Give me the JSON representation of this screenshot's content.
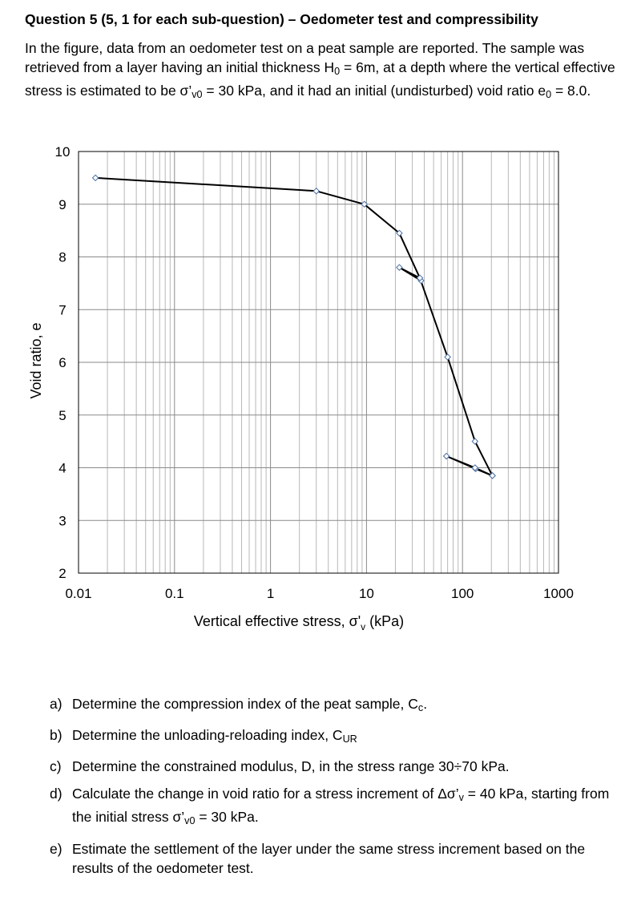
{
  "title": "Question 5 (5, 1 for each sub-question) – Oedometer test and compressibility",
  "intro": {
    "p1": "In the figure, data from an oedometer test on a peat sample are reported. The sample was retrieved from a layer having an initial thickness H",
    "H0_sub": "0",
    "p2": " = 6m, at a depth where the vertical effective stress is estimated to be σ’",
    "sv0_sub": "v0",
    "p3": " = 30 kPa, and it had an initial (undisturbed) void ratio e",
    "e0_sub": "0",
    "p4": " = 8.0."
  },
  "chart_data": {
    "type": "line",
    "xscale": "log",
    "xlim": [
      0.01,
      1000
    ],
    "ylim": [
      2,
      10
    ],
    "x_tick_labels": [
      "0.01",
      "0.1",
      "1",
      "10",
      "100",
      "1000"
    ],
    "y_tick_labels": [
      "2",
      "3",
      "4",
      "5",
      "6",
      "7",
      "8",
      "9",
      "10"
    ],
    "xlabel_main": "Vertical effective stress, σ'",
    "xlabel_sub": "v",
    "xlabel_tail": " (kPa)",
    "ylabel": "Void ratio, e",
    "grid": true,
    "series": [
      {
        "name": "oedometer test",
        "x": [
          0.015,
          3,
          9.5,
          22,
          37,
          22,
          36,
          70,
          135,
          205,
          137,
          68,
          135,
          205
        ],
        "y": [
          9.5,
          9.25,
          9.0,
          8.45,
          7.55,
          7.8,
          7.6,
          6.1,
          4.5,
          3.85,
          3.98,
          4.22,
          4.0,
          3.85
        ]
      }
    ]
  },
  "questions": [
    {
      "letter": "a)",
      "t1": "Determine the compression index of the peat sample, C",
      "s1": "c",
      "t2": "."
    },
    {
      "letter": "b)",
      "t1": "Determine the unloading-reloading index, C",
      "s1": "UR",
      "t2": ""
    },
    {
      "letter": "c)",
      "t1": "Determine the constrained modulus, D, in the stress range 30÷70 kPa.",
      "s1": "",
      "t2": ""
    },
    {
      "letter": "d)",
      "t1": "Calculate the change in void ratio for a stress increment of Δσ’",
      "s1": "v",
      "t2": " = 40 kPa, starting from the initial stress σ’",
      "s2": "v0",
      "t3": " = 30 kPa."
    },
    {
      "letter": "e)",
      "t1": "Estimate the settlement of the layer under the same stress increment based on the results of the oedometer test.",
      "s1": "",
      "t2": ""
    }
  ]
}
